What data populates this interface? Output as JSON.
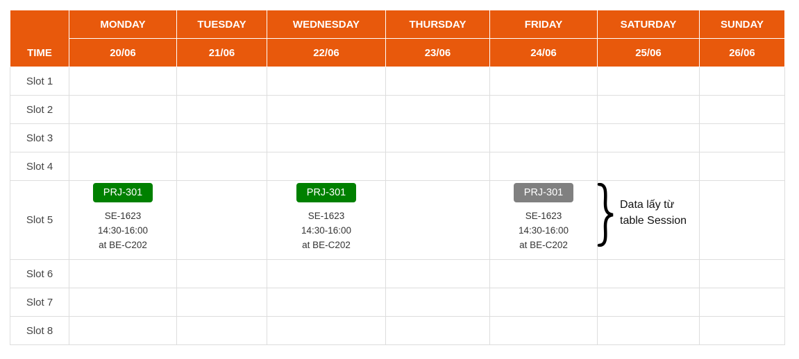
{
  "header": {
    "time_label": "TIME",
    "days": [
      {
        "name": "MONDAY",
        "date": "20/06"
      },
      {
        "name": "TUESDAY",
        "date": "21/06"
      },
      {
        "name": "WEDNESDAY",
        "date": "22/06"
      },
      {
        "name": "THURSDAY",
        "date": "23/06"
      },
      {
        "name": "FRIDAY",
        "date": "24/06"
      },
      {
        "name": "SATURDAY",
        "date": "25/06"
      },
      {
        "name": "SUNDAY",
        "date": "26/06"
      }
    ]
  },
  "slots": [
    "Slot 1",
    "Slot 2",
    "Slot 3",
    "Slot 4",
    "Slot 5",
    "Slot 6",
    "Slot 7",
    "Slot 8"
  ],
  "sessions": {
    "monday": {
      "course": "PRJ-301",
      "group": "SE-1623",
      "time": "14:30-16:00",
      "room": "at BE-C202",
      "status_color": "#008000"
    },
    "wednesday": {
      "course": "PRJ-301",
      "group": "SE-1623",
      "time": "14:30-16:00",
      "room": "at BE-C202",
      "status_color": "#008000"
    },
    "friday": {
      "course": "PRJ-301",
      "group": "SE-1623",
      "time": "14:30-16:00",
      "room": "at BE-C202",
      "status_color": "#808080"
    }
  },
  "annotation": {
    "line1": "Data lấy từ",
    "line2": "table Session"
  },
  "colors": {
    "header_bg": "#e8590c",
    "header_text": "#ffffff",
    "grid": "#dddddd"
  }
}
